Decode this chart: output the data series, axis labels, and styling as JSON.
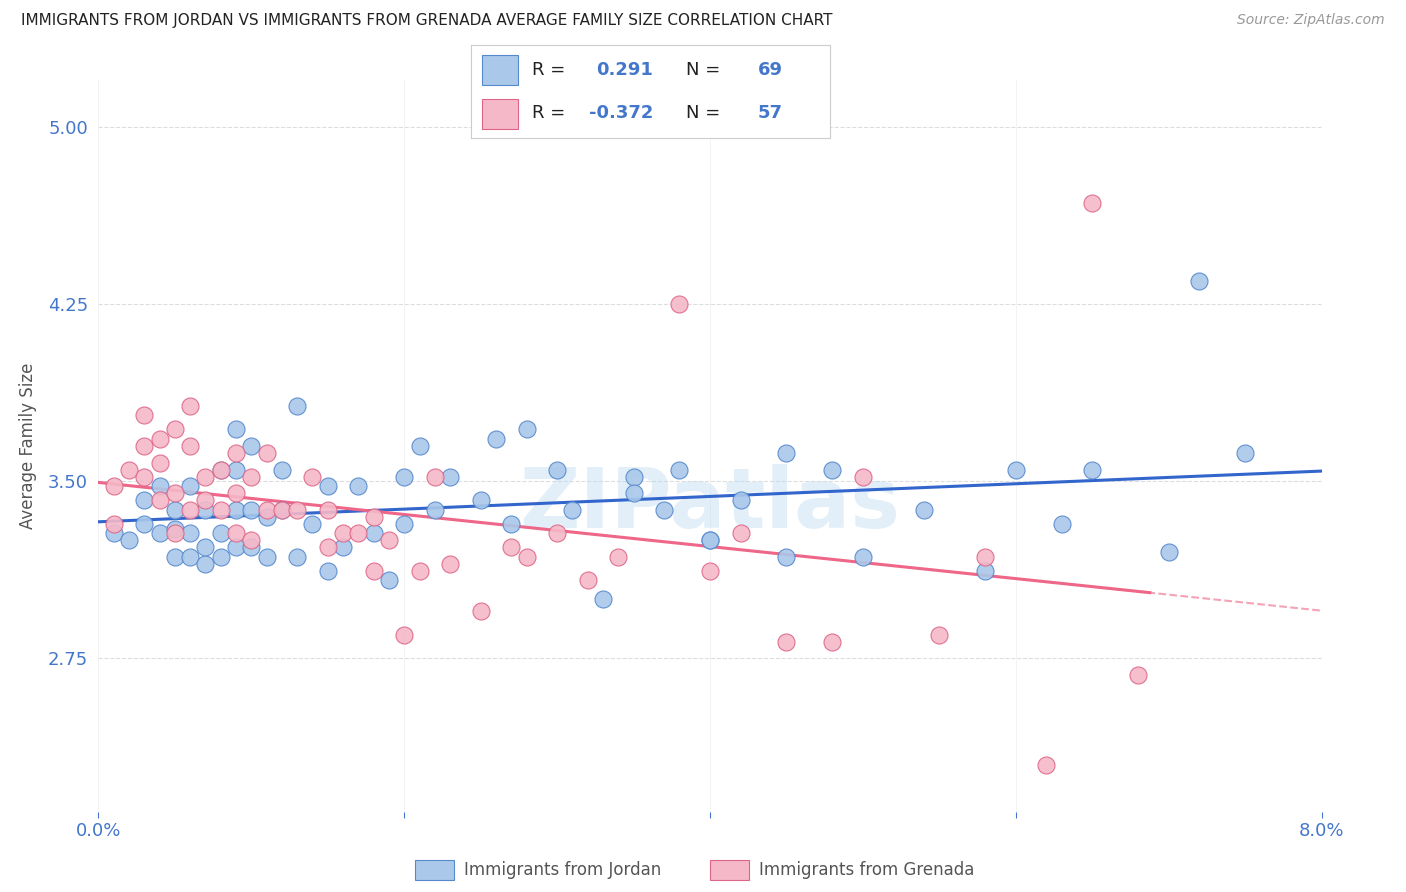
{
  "title": "IMMIGRANTS FROM JORDAN VS IMMIGRANTS FROM GRENADA AVERAGE FAMILY SIZE CORRELATION CHART",
  "source": "Source: ZipAtlas.com",
  "ylabel": "Average Family Size",
  "xlim": [
    0.0,
    0.08
  ],
  "ylim": [
    2.1,
    5.2
  ],
  "yticks": [
    2.75,
    3.5,
    4.25,
    5.0
  ],
  "xticks": [
    0.0,
    0.02,
    0.04,
    0.06,
    0.08
  ],
  "xticklabels": [
    "0.0%",
    "",
    "",
    "",
    "8.0%"
  ],
  "background_color": "#ffffff",
  "grid_color": "#cccccc",
  "jordan_color": "#aac8ea",
  "grenada_color": "#f5b8c8",
  "jordan_border": "#5588cc",
  "grenada_border": "#dd6688",
  "jordan_line_color": "#3366cc",
  "grenada_line_color": "#ee6688",
  "axis_color": "#4477cc",
  "r_jordan": "0.291",
  "n_jordan": "69",
  "r_grenada": "-0.372",
  "n_grenada": "57",
  "watermark": "ZIPatlas",
  "jordan_x": [
    0.001,
    0.002,
    0.003,
    0.003,
    0.004,
    0.004,
    0.005,
    0.005,
    0.005,
    0.006,
    0.006,
    0.006,
    0.007,
    0.007,
    0.007,
    0.008,
    0.008,
    0.008,
    0.009,
    0.009,
    0.009,
    0.009,
    0.01,
    0.01,
    0.01,
    0.011,
    0.011,
    0.012,
    0.012,
    0.013,
    0.013,
    0.014,
    0.015,
    0.015,
    0.016,
    0.017,
    0.018,
    0.019,
    0.02,
    0.02,
    0.021,
    0.022,
    0.023,
    0.025,
    0.026,
    0.027,
    0.028,
    0.03,
    0.031,
    0.033,
    0.035,
    0.037,
    0.038,
    0.04,
    0.042,
    0.045,
    0.048,
    0.05,
    0.054,
    0.058,
    0.063,
    0.065,
    0.07,
    0.072,
    0.075,
    0.04,
    0.035,
    0.045,
    0.06
  ],
  "jordan_y": [
    3.28,
    3.25,
    3.32,
    3.42,
    3.28,
    3.48,
    3.18,
    3.3,
    3.38,
    3.18,
    3.28,
    3.48,
    3.15,
    3.22,
    3.38,
    3.18,
    3.28,
    3.55,
    3.22,
    3.38,
    3.55,
    3.72,
    3.22,
    3.38,
    3.65,
    3.18,
    3.35,
    3.38,
    3.55,
    3.18,
    3.82,
    3.32,
    3.12,
    3.48,
    3.22,
    3.48,
    3.28,
    3.08,
    3.32,
    3.52,
    3.65,
    3.38,
    3.52,
    3.42,
    3.68,
    3.32,
    3.72,
    3.55,
    3.38,
    3.0,
    3.52,
    3.38,
    3.55,
    3.25,
    3.42,
    3.18,
    3.55,
    3.18,
    3.38,
    3.12,
    3.32,
    3.55,
    3.2,
    4.35,
    3.62,
    3.25,
    3.45,
    3.62,
    3.55
  ],
  "grenada_x": [
    0.001,
    0.001,
    0.002,
    0.003,
    0.003,
    0.003,
    0.004,
    0.004,
    0.004,
    0.005,
    0.005,
    0.005,
    0.006,
    0.006,
    0.006,
    0.007,
    0.007,
    0.008,
    0.008,
    0.009,
    0.009,
    0.009,
    0.01,
    0.01,
    0.011,
    0.011,
    0.012,
    0.013,
    0.014,
    0.015,
    0.015,
    0.016,
    0.017,
    0.018,
    0.018,
    0.019,
    0.02,
    0.021,
    0.022,
    0.023,
    0.025,
    0.027,
    0.028,
    0.03,
    0.032,
    0.034,
    0.038,
    0.04,
    0.042,
    0.045,
    0.048,
    0.05,
    0.055,
    0.058,
    0.062,
    0.065,
    0.068
  ],
  "grenada_y": [
    3.32,
    3.48,
    3.55,
    3.52,
    3.65,
    3.78,
    3.42,
    3.58,
    3.68,
    3.28,
    3.45,
    3.72,
    3.38,
    3.65,
    3.82,
    3.42,
    3.52,
    3.38,
    3.55,
    3.28,
    3.45,
    3.62,
    3.25,
    3.52,
    3.38,
    3.62,
    3.38,
    3.38,
    3.52,
    3.22,
    3.38,
    3.28,
    3.28,
    3.12,
    3.35,
    3.25,
    2.85,
    3.12,
    3.52,
    3.15,
    2.95,
    3.22,
    3.18,
    3.28,
    3.08,
    3.18,
    4.25,
    3.12,
    3.28,
    2.82,
    2.82,
    3.52,
    2.85,
    3.18,
    2.3,
    4.68,
    2.68
  ],
  "legend_label_jordan": "Immigrants from Jordan",
  "legend_label_grenada": "Immigrants from Grenada"
}
